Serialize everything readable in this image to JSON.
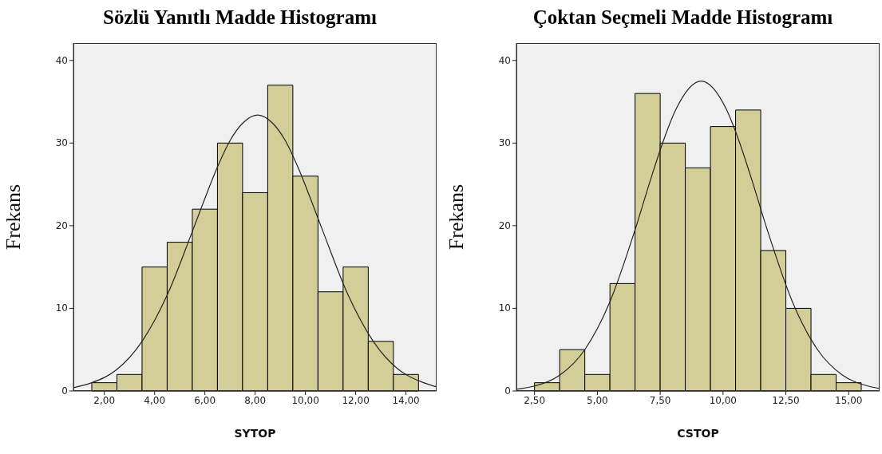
{
  "chart_data": [
    {
      "type": "histogram",
      "title": "Sözlü Yanıtlı Madde Histogramı",
      "xlabel": "SYTOP",
      "ylabel": "Frekans",
      "bins": [
        1.5,
        2.5,
        3.5,
        4.5,
        5.5,
        6.5,
        7.5,
        8.5,
        9.5,
        10.5,
        11.5,
        12.5,
        13.5,
        14.5
      ],
      "values": [
        1,
        2,
        15,
        18,
        22,
        30,
        24,
        37,
        26,
        12,
        15,
        6,
        2
      ],
      "color": "#d3ce97",
      "xlim": [
        0.77,
        15.22
      ],
      "ylim": [
        0,
        42.1
      ],
      "xticks": [
        {
          "value": 2,
          "label": "2,00"
        },
        {
          "value": 4,
          "label": "4,00"
        },
        {
          "value": 6,
          "label": "6,00"
        },
        {
          "value": 8,
          "label": "8,00"
        },
        {
          "value": 10,
          "label": "10,00"
        },
        {
          "value": 12,
          "label": "12,00"
        },
        {
          "value": 14,
          "label": "14,00"
        }
      ],
      "yticks": [
        0,
        10,
        20,
        30,
        40
      ],
      "marker": "none",
      "series": [
        {
          "type": "line",
          "color": "#222222",
          "x": [
            0.77,
            1.5,
            2.5,
            3.5,
            4.5,
            5.5,
            6.0,
            6.5,
            7.0,
            7.5,
            8.1,
            8.7,
            9.2,
            9.7,
            10.2,
            10.7,
            11.7,
            12.7,
            13.7,
            14.7,
            15.22
          ],
          "values": [
            0.4,
            1.0,
            2.6,
            6.0,
            11.6,
            19.3,
            23.3,
            27.1,
            30.3,
            32.4,
            33.4,
            32.4,
            30.3,
            27.1,
            23.3,
            19.3,
            11.6,
            6.0,
            2.6,
            1.0,
            0.5
          ]
        }
      ]
    },
    {
      "type": "histogram",
      "title": "Çoktan Seçmeli Madde Histogramı",
      "xlabel": "CSTOP",
      "ylabel": "Frekans",
      "bins": [
        2.5,
        3.5,
        4.5,
        5.5,
        6.5,
        7.5,
        8.5,
        9.5,
        10.5,
        11.5,
        12.5,
        13.5,
        14.5,
        15.5
      ],
      "values": [
        1,
        5,
        2,
        13,
        36,
        30,
        27,
        32,
        34,
        17,
        10,
        2,
        1
      ],
      "color": "#d3ce97",
      "xlim": [
        1.78,
        16.23
      ],
      "ylim": [
        0,
        42.1
      ],
      "xticks": [
        {
          "value": 2.5,
          "label": "2,50"
        },
        {
          "value": 5,
          "label": "5,00"
        },
        {
          "value": 7.5,
          "label": "7,50"
        },
        {
          "value": 10,
          "label": "10,00"
        },
        {
          "value": 12.5,
          "label": "12,50"
        },
        {
          "value": 15,
          "label": "15,00"
        }
      ],
      "yticks": [
        0,
        10,
        20,
        30,
        40
      ],
      "marker": "none",
      "series": [
        {
          "type": "line",
          "color": "#222222",
          "x": [
            1.78,
            2.5,
            3.5,
            4.5,
            5.5,
            6.5,
            7.13,
            7.63,
            8.13,
            9.13,
            10.13,
            10.63,
            11.13,
            11.76,
            12.76,
            13.76,
            14.76,
            15.76,
            16.23
          ],
          "values": [
            0.2,
            0.6,
            1.9,
            5.0,
            10.8,
            19.5,
            25.7,
            30.3,
            34.1,
            37.5,
            34.1,
            30.3,
            25.7,
            19.5,
            10.8,
            5.0,
            1.9,
            0.6,
            0.3
          ]
        }
      ]
    }
  ]
}
